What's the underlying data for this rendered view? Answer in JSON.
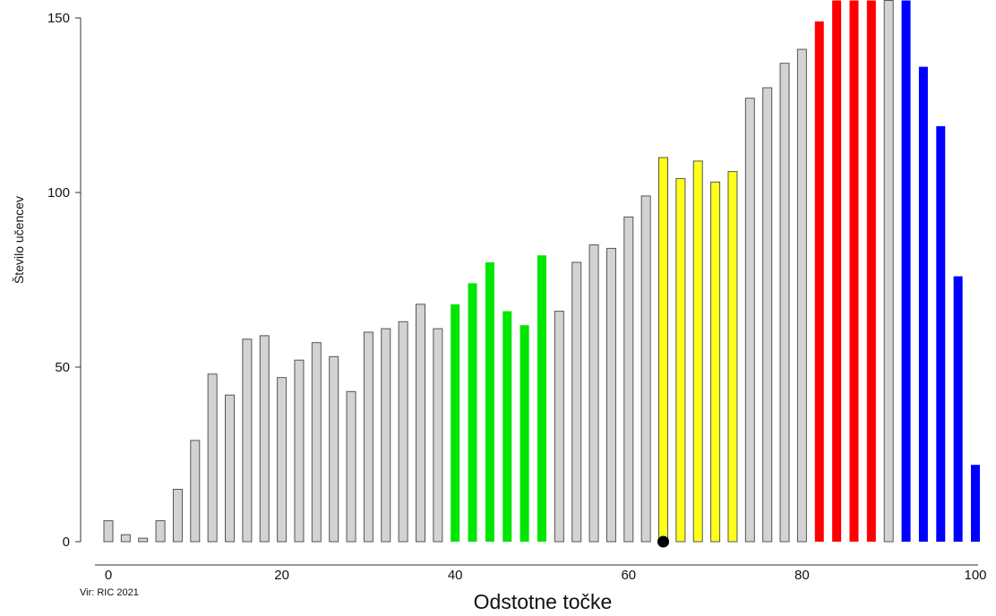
{
  "chart_data": {
    "type": "bar",
    "xlabel": "Odstotne točke",
    "ylabel": "Število učencev",
    "source": "Vir: RIC 2021",
    "xlim": [
      0,
      100
    ],
    "ylim": [
      0,
      150
    ],
    "x_ticks": [
      0,
      20,
      40,
      60,
      80,
      100
    ],
    "y_ticks": [
      0,
      50,
      100,
      150
    ],
    "colors": {
      "gray": "#d3d3d3",
      "green": "#00e600",
      "yellow": "#ffff1a",
      "red": "#ff0000",
      "blue": "#0000ff",
      "marker": "#000000"
    },
    "x": [
      0,
      2,
      4,
      6,
      8,
      10,
      12,
      14,
      16,
      18,
      20,
      22,
      24,
      26,
      28,
      30,
      32,
      34,
      36,
      38,
      40,
      42,
      44,
      46,
      48,
      50,
      52,
      54,
      56,
      58,
      60,
      62,
      64,
      66,
      68,
      70,
      72,
      74,
      76,
      78,
      80,
      82,
      84,
      86,
      88,
      90,
      92,
      94,
      96,
      98,
      100
    ],
    "values": [
      6,
      2,
      1,
      6,
      15,
      29,
      48,
      42,
      58,
      59,
      47,
      52,
      57,
      53,
      43,
      60,
      61,
      63,
      68,
      61,
      68,
      74,
      80,
      66,
      62,
      82,
      66,
      80,
      85,
      84,
      93,
      99,
      110,
      104,
      109,
      103,
      106,
      127,
      130,
      137,
      141,
      149,
      155,
      155,
      155,
      155,
      155,
      136,
      119,
      76,
      22
    ],
    "bar_colors": [
      "gray",
      "gray",
      "gray",
      "gray",
      "gray",
      "gray",
      "gray",
      "gray",
      "gray",
      "gray",
      "gray",
      "gray",
      "gray",
      "gray",
      "gray",
      "gray",
      "gray",
      "gray",
      "gray",
      "gray",
      "green",
      "green",
      "green",
      "green",
      "green",
      "green",
      "gray",
      "gray",
      "gray",
      "gray",
      "gray",
      "gray",
      "yellow",
      "yellow",
      "yellow",
      "yellow",
      "yellow",
      "gray",
      "gray",
      "gray",
      "gray",
      "red",
      "red",
      "red",
      "red",
      "gray",
      "blue",
      "blue",
      "blue",
      "blue",
      "blue"
    ],
    "marker": {
      "x": 64,
      "y": 0
    }
  }
}
